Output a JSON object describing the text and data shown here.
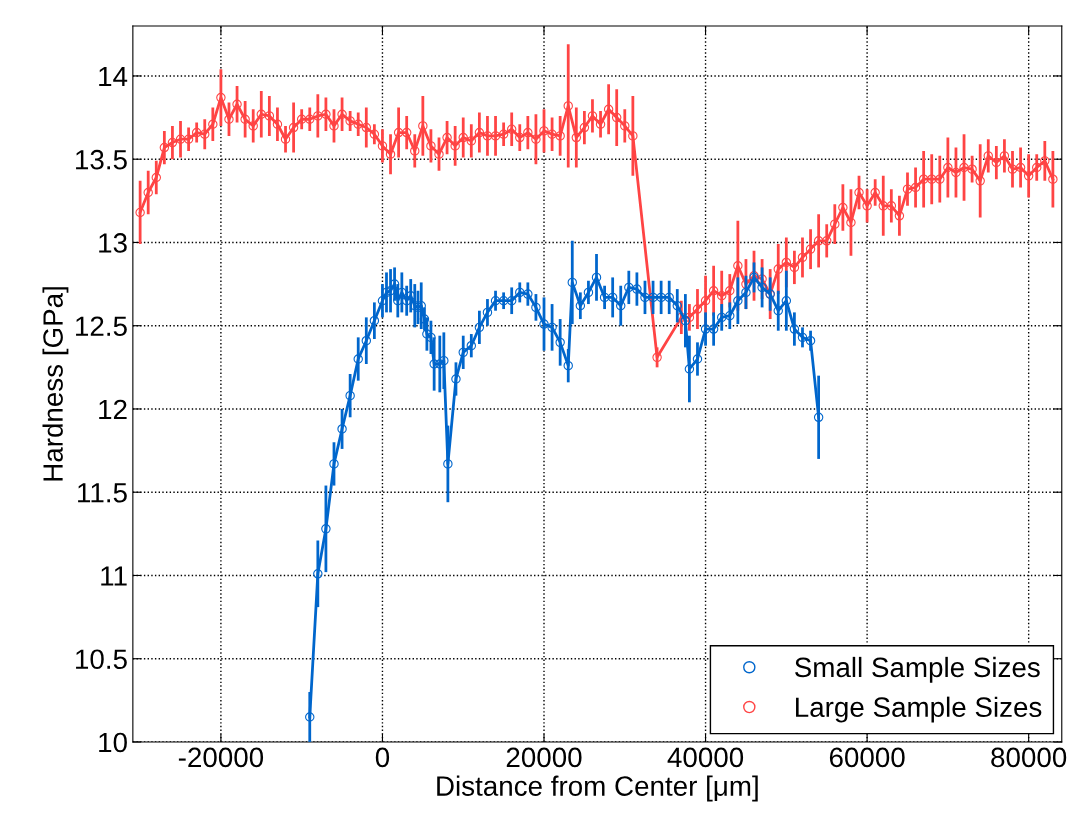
{
  "chart_data": {
    "type": "line",
    "xlabel": "Distance from Center [μm]",
    "ylabel": "Hardness [GPa]",
    "xlim": [
      -30900,
      84100
    ],
    "ylim": [
      10,
      14.3
    ],
    "xticks": [
      -20000,
      0,
      20000,
      40000,
      60000,
      80000
    ],
    "yticks": [
      10,
      10.5,
      11,
      11.5,
      12,
      12.5,
      13,
      13.5,
      14
    ],
    "grid": true,
    "legend": "bottom right",
    "marker": "circle",
    "line_style": "solid",
    "series": [
      {
        "name": "Small Sample Sizes",
        "color": "#0066cc",
        "x": [
          -9000,
          -8000,
          -7000,
          -6000,
          -5000,
          -4000,
          -3000,
          -2000,
          -1000,
          0,
          500,
          1000,
          1500,
          1900,
          2400,
          3000,
          3500,
          4000,
          4400,
          4800,
          5200,
          5500,
          6000,
          6400,
          7100,
          7600,
          8100,
          9100,
          10000,
          11000,
          12000,
          13000,
          14000,
          15000,
          16000,
          17000,
          18000,
          19000,
          20000,
          21000,
          22000,
          23000,
          23500,
          24500,
          25500,
          26500,
          27500,
          28500,
          29500,
          30500,
          31500,
          32500,
          33500,
          34500,
          35500,
          36500,
          37500,
          38000,
          39000,
          40000,
          41000,
          42000,
          43000,
          44000,
          45000,
          46000,
          47000,
          48000,
          49000,
          50000,
          51000,
          52000,
          53000,
          54000
        ],
        "values": [
          10.15,
          11.01,
          11.28,
          11.67,
          11.88,
          12.08,
          12.3,
          12.41,
          12.53,
          12.65,
          12.7,
          12.71,
          12.75,
          12.65,
          12.7,
          12.65,
          12.68,
          12.62,
          12.61,
          12.62,
          12.54,
          12.45,
          12.43,
          12.27,
          12.27,
          12.29,
          11.67,
          12.18,
          12.34,
          12.38,
          12.49,
          12.58,
          12.65,
          12.65,
          12.65,
          12.7,
          12.69,
          12.61,
          12.51,
          12.49,
          12.4,
          12.26,
          12.76,
          12.62,
          12.7,
          12.79,
          12.67,
          12.67,
          12.62,
          12.73,
          12.72,
          12.67,
          12.67,
          12.67,
          12.67,
          12.62,
          12.53,
          12.24,
          12.3,
          12.48,
          12.48,
          12.55,
          12.56,
          12.65,
          12.7,
          12.79,
          12.73,
          12.69,
          12.59,
          12.65,
          12.48,
          12.43,
          12.41,
          11.95
        ],
        "errors": [
          0.15,
          0.2,
          0.26,
          0.13,
          0.12,
          0.13,
          0.13,
          0.14,
          0.11,
          0.1,
          0.12,
          0.13,
          0.1,
          0.1,
          0.12,
          0.09,
          0.1,
          0.13,
          0.1,
          0.14,
          0.07,
          0.1,
          0.1,
          0.16,
          0.17,
          0.17,
          0.23,
          0.1,
          0.1,
          0.07,
          0.1,
          0.08,
          0.06,
          0.05,
          0.08,
          0.06,
          0.07,
          0.08,
          0.16,
          0.14,
          0.14,
          0.1,
          0.25,
          0.08,
          0.07,
          0.14,
          0.07,
          0.12,
          0.12,
          0.1,
          0.1,
          0.1,
          0.1,
          0.1,
          0.1,
          0.1,
          0.16,
          0.2,
          0.1,
          0.1,
          0.1,
          0.08,
          0.08,
          0.14,
          0.1,
          0.09,
          0.12,
          0.1,
          0.12,
          0.18,
          0.1,
          0.06,
          0.06,
          0.25
        ]
      },
      {
        "name": "Large Sample Sizes",
        "color": "#ff4444",
        "x": [
          -30000,
          -29000,
          -28000,
          -27000,
          -26000,
          -25000,
          -24000,
          -23000,
          -22000,
          -21000,
          -20000,
          -19000,
          -18000,
          -17000,
          -16000,
          -15000,
          -14000,
          -13000,
          -12000,
          -11000,
          -10000,
          -9000,
          -8000,
          -7000,
          -6000,
          -5000,
          -4000,
          -3000,
          -2000,
          -1000,
          0,
          1000,
          2000,
          3000,
          4000,
          5000,
          6000,
          7000,
          8000,
          9000,
          10000,
          11000,
          12000,
          13000,
          14000,
          15000,
          16000,
          17000,
          18000,
          19000,
          20000,
          21000,
          22000,
          23000,
          24000,
          25000,
          26000,
          27000,
          28000,
          29000,
          30000,
          31000,
          34000,
          37000,
          38000,
          39000,
          40000,
          41000,
          42000,
          43000,
          44000,
          45000,
          46000,
          47000,
          48000,
          49000,
          50000,
          51000,
          52000,
          53000,
          54000,
          55000,
          56000,
          57000,
          58000,
          59000,
          60000,
          61000,
          62000,
          63000,
          64000,
          65000,
          66000,
          67000,
          68000,
          69000,
          70000,
          71000,
          72000,
          73000,
          74000,
          75000,
          76000,
          77000,
          78000,
          79000,
          80000,
          81000,
          82000,
          83000
        ],
        "values": [
          13.18,
          13.3,
          13.39,
          13.57,
          13.6,
          13.62,
          13.62,
          13.66,
          13.65,
          13.71,
          13.87,
          13.74,
          13.83,
          13.74,
          13.7,
          13.77,
          13.76,
          13.71,
          13.62,
          13.69,
          13.74,
          13.74,
          13.76,
          13.77,
          13.7,
          13.77,
          13.73,
          13.71,
          13.69,
          13.65,
          13.58,
          13.53,
          13.66,
          13.66,
          13.55,
          13.7,
          13.58,
          13.53,
          13.63,
          13.58,
          13.63,
          13.61,
          13.66,
          13.64,
          13.64,
          13.65,
          13.68,
          13.63,
          13.66,
          13.62,
          13.67,
          13.65,
          13.64,
          13.82,
          13.63,
          13.69,
          13.76,
          13.71,
          13.8,
          13.75,
          13.7,
          13.64,
          12.31,
          12.55,
          12.55,
          12.6,
          12.65,
          12.71,
          12.68,
          12.71,
          12.86,
          12.75,
          12.8,
          12.78,
          12.69,
          12.84,
          12.88,
          12.85,
          12.91,
          12.96,
          13.01,
          13.01,
          13.11,
          13.21,
          13.12,
          13.3,
          13.22,
          13.3,
          13.22,
          13.22,
          13.16,
          13.32,
          13.33,
          13.38,
          13.38,
          13.38,
          13.45,
          13.42,
          13.45,
          13.44,
          13.37,
          13.52,
          13.48,
          13.52,
          13.44,
          13.45,
          13.4,
          13.45,
          13.49,
          13.38
        ],
        "errors": [
          0.19,
          0.13,
          0.1,
          0.1,
          0.1,
          0.11,
          0.07,
          0.06,
          0.09,
          0.1,
          0.17,
          0.1,
          0.11,
          0.11,
          0.1,
          0.14,
          0.12,
          0.1,
          0.08,
          0.15,
          0.06,
          0.07,
          0.13,
          0.1,
          0.1,
          0.1,
          0.06,
          0.07,
          0.12,
          0.06,
          0.1,
          0.12,
          0.15,
          0.1,
          0.1,
          0.18,
          0.1,
          0.1,
          0.1,
          0.12,
          0.12,
          0.1,
          0.12,
          0.12,
          0.12,
          0.07,
          0.1,
          0.08,
          0.1,
          0.15,
          0.13,
          0.1,
          0.12,
          0.37,
          0.18,
          0.1,
          0.1,
          0.08,
          0.15,
          0.17,
          0.1,
          0.24,
          0.06,
          0.1,
          0.08,
          0.12,
          0.15,
          0.15,
          0.15,
          0.1,
          0.27,
          0.15,
          0.15,
          0.12,
          0.15,
          0.15,
          0.15,
          0.1,
          0.12,
          0.12,
          0.16,
          0.1,
          0.12,
          0.14,
          0.2,
          0.1,
          0.1,
          0.08,
          0.18,
          0.1,
          0.12,
          0.1,
          0.12,
          0.17,
          0.15,
          0.14,
          0.18,
          0.15,
          0.2,
          0.08,
          0.22,
          0.1,
          0.1,
          0.1,
          0.11,
          0.12,
          0.13,
          0.08,
          0.12,
          0.17
        ]
      }
    ]
  }
}
